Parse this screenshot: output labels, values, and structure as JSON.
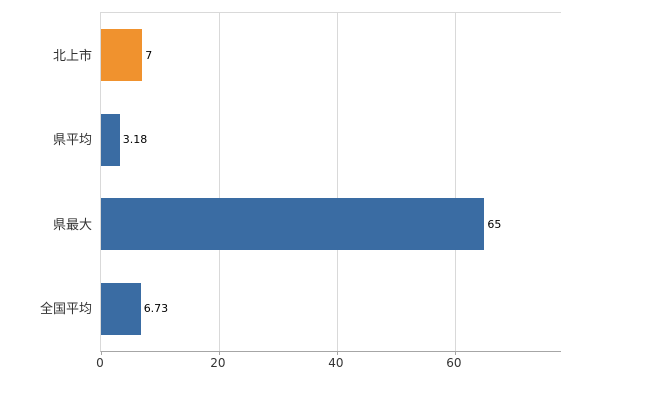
{
  "chart_data": {
    "type": "bar",
    "orientation": "horizontal",
    "title": "",
    "xlabel": "",
    "ylabel": "",
    "categories": [
      "北上市",
      "県平均",
      "県最大",
      "全国平均"
    ],
    "values": [
      7,
      3.18,
      65,
      6.73
    ],
    "value_labels": [
      "7",
      "3.18",
      "65",
      "6.73"
    ],
    "bar_colors": [
      "#f0922e",
      "#3a6ca3",
      "#3a6ca3",
      "#3a6ca3"
    ],
    "xlim": [
      0,
      78
    ],
    "xticks": [
      0,
      20,
      40,
      60
    ],
    "grid": true,
    "legend": "none"
  },
  "styles": {
    "grid_color": "#d9d9d9",
    "axis_color": "#a6a6a6",
    "label_color": "#333333",
    "background": "#ffffff"
  }
}
